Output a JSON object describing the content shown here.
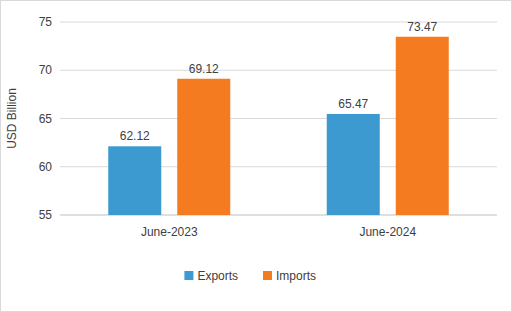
{
  "chart_data": {
    "type": "bar",
    "y_label": "USD Billion",
    "categories": [
      "June-2023",
      "June-2024"
    ],
    "series": [
      {
        "name": "Exports",
        "color": "#3d9ad1",
        "values": [
          62.12,
          65.47
        ]
      },
      {
        "name": "Imports",
        "color": "#f47b20",
        "values": [
          69.12,
          73.47
        ]
      }
    ],
    "ylim": [
      55,
      75
    ],
    "yticks": [
      55,
      60,
      65,
      70,
      75
    ],
    "grid": true,
    "data_labels": true,
    "legend": "bottom"
  }
}
